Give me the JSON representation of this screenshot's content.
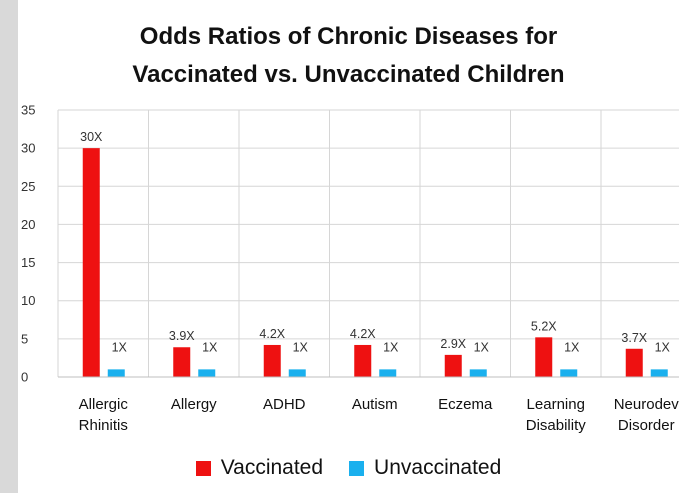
{
  "chart_data": {
    "type": "bar",
    "title_lines": [
      "Odds Ratios of Chronic Diseases for",
      "Vaccinated vs. Unvaccinated Children"
    ],
    "categories": [
      [
        "Allergic",
        "Rhinitis"
      ],
      [
        "Allergy"
      ],
      [
        "ADHD"
      ],
      [
        "Autism"
      ],
      [
        "Eczema"
      ],
      [
        "Learning",
        "Disability"
      ],
      [
        "Neurodev",
        "Disorder"
      ]
    ],
    "series": [
      {
        "name": "Vaccinated",
        "color": "#ee1111",
        "values": [
          30,
          3.9,
          4.2,
          4.2,
          2.9,
          5.2,
          3.7
        ],
        "labels": [
          "30X",
          "3.9X",
          "4.2X",
          "4.2X",
          "2.9X",
          "5.2X",
          "3.7X"
        ]
      },
      {
        "name": "Unvaccinated",
        "color": "#1ab0ee",
        "values": [
          1,
          1,
          1,
          1,
          1,
          1,
          1
        ],
        "labels": [
          "1X",
          "1X",
          "1X",
          "1X",
          "1X",
          "1X",
          "1X"
        ]
      }
    ],
    "yticks": [
      "0",
      "5",
      "10",
      "15",
      "20",
      "25",
      "30",
      "35"
    ],
    "ylim": [
      0,
      35
    ],
    "grid": true,
    "legend_position": "bottom",
    "xlabel": "",
    "ylabel": ""
  }
}
